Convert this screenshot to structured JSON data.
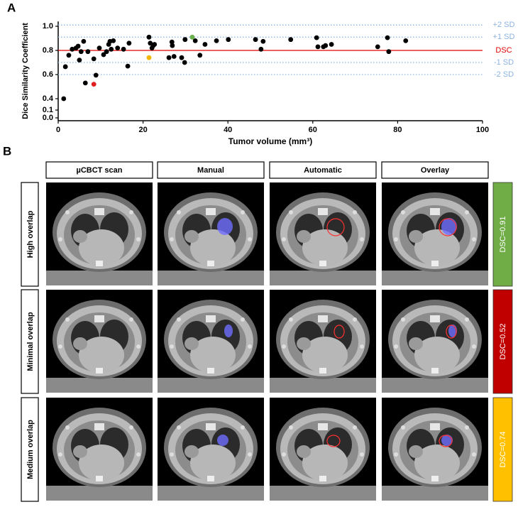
{
  "panel_labels": [
    "A",
    "B"
  ],
  "chart_data": {
    "type": "scatter",
    "xlabel": "Tumor volume (mm³)",
    "ylabel": "Dice Similarity Coefficient",
    "xlim": [
      0,
      100
    ],
    "xticks": [
      0,
      20,
      40,
      60,
      80,
      100
    ],
    "ylim": [
      0,
      1.04
    ],
    "y_break": [
      0.1,
      0.4
    ],
    "yticks": [
      {
        "value": 0,
        "label": "0.0"
      },
      0.1,
      0.4,
      0.6,
      0.8,
      {
        "value": 1,
        "label": "1.0"
      }
    ],
    "series": [
      {
        "color": "#000000",
        "x": [
          1.3,
          1.7,
          2.5,
          3.3,
          4.2,
          4.7,
          5.0,
          5.4,
          6.0,
          6.4,
          7.0,
          8.4,
          8.9,
          9.7,
          10.7,
          11.4,
          11.9,
          12.2,
          12.5,
          13.0,
          14.0,
          15.4,
          16.4,
          16.7,
          21.4,
          21.7,
          22.1,
          22.4,
          22.7,
          26.1,
          26.8,
          26.9,
          27.3,
          29.1,
          29.8,
          29.9,
          32.3,
          33.4,
          34.6,
          37.3,
          40.1,
          46.5,
          47.8,
          48.3,
          54.8,
          60.9,
          61.2,
          62.5,
          63.0,
          64.4,
          75.3,
          77.6,
          77.9,
          81.9
        ],
        "values": [
          0.4,
          0.665,
          0.76,
          0.81,
          0.82,
          0.835,
          0.72,
          0.79,
          0.875,
          0.53,
          0.79,
          0.73,
          0.595,
          0.82,
          0.765,
          0.79,
          0.85,
          0.875,
          0.81,
          0.88,
          0.82,
          0.81,
          0.67,
          0.86,
          0.91,
          0.86,
          0.82,
          0.84,
          0.85,
          0.74,
          0.87,
          0.84,
          0.75,
          0.74,
          0.7,
          0.89,
          0.88,
          0.76,
          0.85,
          0.88,
          0.89,
          0.89,
          0.81,
          0.875,
          0.89,
          0.905,
          0.83,
          0.83,
          0.84,
          0.85,
          0.83,
          0.905,
          0.79,
          0.88
        ]
      },
      {
        "color": "#e02020",
        "x": [
          8.4
        ],
        "values": [
          0.52
        ]
      },
      {
        "color": "#f2b705",
        "x": [
          21.4
        ],
        "values": [
          0.74
        ]
      },
      {
        "color": "#6ab04c",
        "x": [
          31.6
        ],
        "values": [
          0.91
        ]
      }
    ],
    "ref_lines": [
      {
        "value": 1.01,
        "label": "+2 SD",
        "color": "#8db3e2",
        "style": "dotted"
      },
      {
        "value": 0.91,
        "label": "+1 SD",
        "color": "#8db3e2",
        "style": "dotted"
      },
      {
        "value": 0.8,
        "label": "DSC",
        "color": "#e00000",
        "style": "solid"
      },
      {
        "value": 0.7,
        "label": "-1 SD",
        "color": "#8db3e2",
        "style": "dotted"
      },
      {
        "value": 0.6,
        "label": "-2 SD",
        "color": "#8db3e2",
        "style": "dotted"
      }
    ]
  },
  "figure_b": {
    "columns": [
      "µCBCT scan",
      "Manual",
      "Automatic",
      "Overlay"
    ],
    "rows": [
      {
        "label": "High overlap",
        "dsc": "DSC=0.91",
        "color": "#70ad47"
      },
      {
        "label": "Minimal overlap",
        "dsc": "DSC=0.52",
        "color": "#c00000"
      },
      {
        "label": "Medium overlap",
        "dsc": "DSC=0.74",
        "color": "#ffc000"
      }
    ]
  }
}
